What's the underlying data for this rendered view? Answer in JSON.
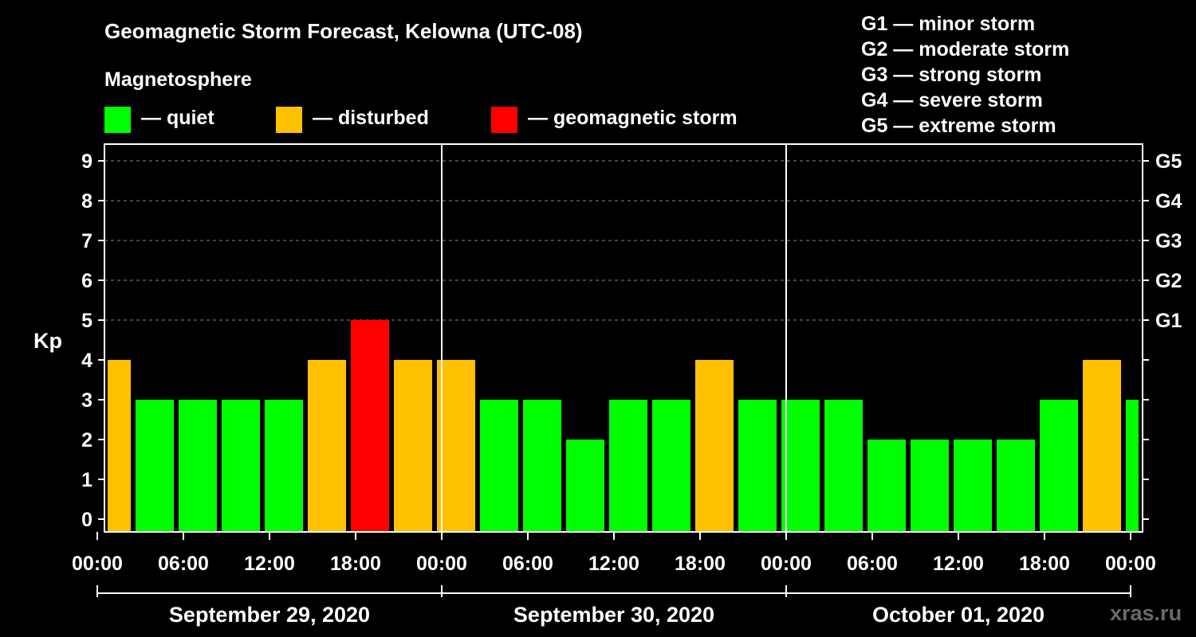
{
  "header": {
    "title": "Geomagnetic Storm Forecast, Kelowna (UTC-08)",
    "subtitle": "Magnetosphere"
  },
  "legend": [
    {
      "label": "— quiet",
      "color": "#00ff00"
    },
    {
      "label": "— disturbed",
      "color": "#ffc000"
    },
    {
      "label": "— geomagnetic storm",
      "color": "#ff0000"
    }
  ],
  "storm_scale": [
    "G1 — minor storm",
    "G2 — moderate storm",
    "G3 — strong storm",
    "G4 — severe storm",
    "G5 — extreme storm"
  ],
  "watermark": "xras.ru",
  "chart_data": {
    "type": "bar",
    "ylabel": "Kp",
    "ylim": [
      0,
      9
    ],
    "yticks": [
      "0",
      "1",
      "2",
      "3",
      "4",
      "5",
      "6",
      "7",
      "8",
      "9"
    ],
    "right_axis": [
      {
        "kp": 5,
        "label": "G1"
      },
      {
        "kp": 6,
        "label": "G2"
      },
      {
        "kp": 7,
        "label": "G3"
      },
      {
        "kp": 8,
        "label": "G4"
      },
      {
        "kp": 9,
        "label": "G5"
      }
    ],
    "x_start_hour": 0.5,
    "x_end_hour": 72.5,
    "bar_hours": [
      1,
      4,
      7,
      10,
      13,
      16,
      19,
      22,
      25,
      28,
      31,
      34,
      37,
      40,
      43,
      46,
      49,
      52,
      55,
      58,
      61,
      64,
      67,
      70,
      73
    ],
    "values": [
      4,
      3,
      3,
      3,
      3,
      4,
      5,
      4,
      4,
      3,
      3,
      2,
      3,
      3,
      4,
      3,
      3,
      3,
      2,
      2,
      2,
      2,
      3,
      4,
      3
    ],
    "colors": {
      "quiet": "#00ff00",
      "disturbed": "#ffc000",
      "storm": "#ff0000"
    },
    "xtick_hours": [
      0,
      6,
      12,
      18,
      24,
      30,
      36,
      42,
      48,
      54,
      60,
      66,
      72
    ],
    "xtick_labels": [
      "00:00",
      "06:00",
      "12:00",
      "18:00",
      "00:00",
      "06:00",
      "12:00",
      "18:00",
      "00:00",
      "06:00",
      "12:00",
      "18:00",
      "00:00"
    ],
    "day_separators_hours": [
      24,
      48
    ],
    "days": [
      {
        "label": "September 29, 2020",
        "start": 0,
        "end": 24
      },
      {
        "label": "September 30, 2020",
        "start": 24,
        "end": 48
      },
      {
        "label": "October 01, 2020",
        "start": 48,
        "end": 72
      }
    ]
  }
}
